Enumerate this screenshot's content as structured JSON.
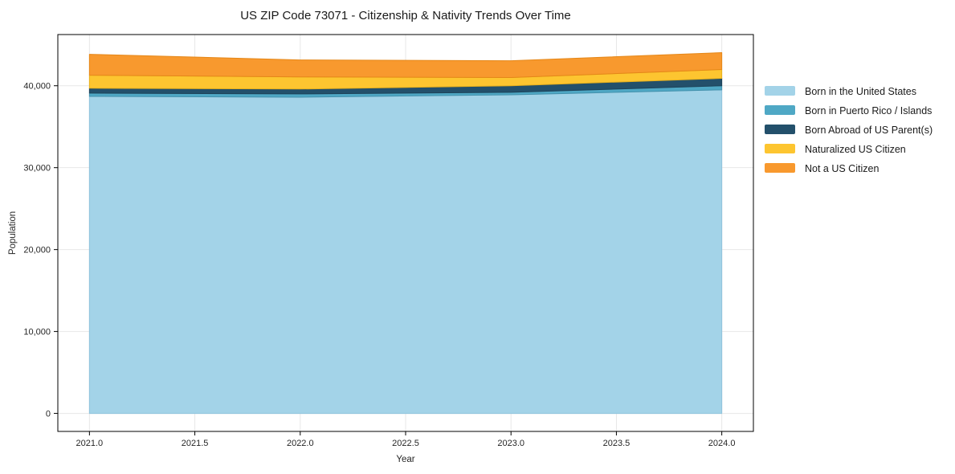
{
  "chart_data": {
    "type": "area",
    "stacked": true,
    "title": "US ZIP Code 73071 - Citizenship & Nativity Trends Over Time",
    "xlabel": "Year",
    "ylabel": "Population",
    "x": [
      2021,
      2022,
      2023,
      2024
    ],
    "series": [
      {
        "name": "Born in the United States",
        "color": "#a3d3e8",
        "edge": "#8fc3dd",
        "values": [
          38700,
          38600,
          38900,
          39500
        ]
      },
      {
        "name": "Born in Puerto Rico / Islands",
        "color": "#4fa8c5",
        "edge": "#4391ac",
        "values": [
          400,
          400,
          300,
          500
        ]
      },
      {
        "name": "Born Abroad of US Parent(s)",
        "color": "#23506b",
        "edge": "#1d4359",
        "values": [
          600,
          600,
          800,
          900
        ]
      },
      {
        "name": "Naturalized US Citizen",
        "color": "#fdc530",
        "edge": "#e8b01c",
        "values": [
          1580,
          1480,
          1000,
          1080
        ]
      },
      {
        "name": "Not a US Citizen",
        "color": "#f8992e",
        "edge": "#e58718",
        "values": [
          2560,
          2070,
          2050,
          2060
        ]
      }
    ],
    "x_ticks": [
      2021.0,
      2021.5,
      2022.0,
      2022.5,
      2023.0,
      2023.5,
      2024.0
    ],
    "x_tick_labels": [
      "2021.0",
      "2021.5",
      "2022.0",
      "2022.5",
      "2023.0",
      "2023.5",
      "2024.0"
    ],
    "y_ticks": [
      0,
      10000,
      20000,
      30000,
      40000
    ],
    "y_tick_labels": [
      "0",
      "10,000",
      "20,000",
      "30,000",
      "40,000"
    ],
    "xlim": [
      2020.85,
      2024.15
    ],
    "ylim": [
      -2200,
      46250
    ],
    "grid": true,
    "grid_color": "#e7e7e7",
    "spine_color": "#000000",
    "legend_position": "right-outside"
  }
}
